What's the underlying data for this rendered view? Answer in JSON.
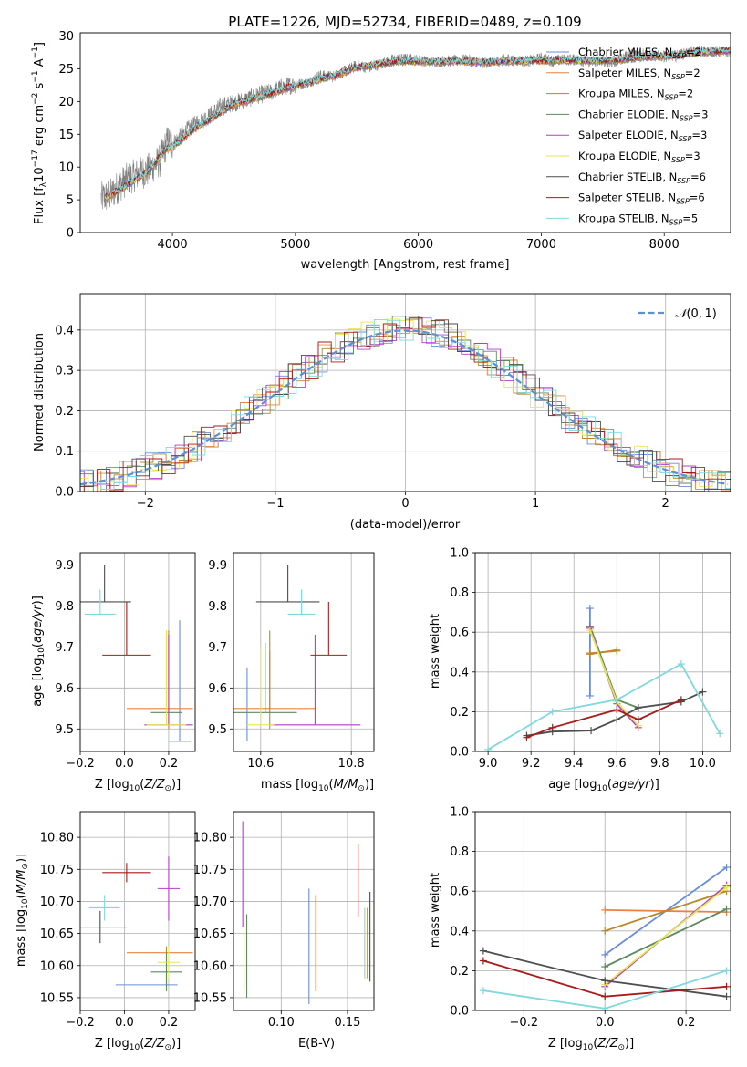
{
  "chart_data": [
    {
      "id": "spectrum",
      "type": "line",
      "title": "PLATE=1226, MJD=52734, FIBERID=0489, z=0.109",
      "xlabel": "wavelength [Angstrom, rest frame]",
      "ylabel": "Flux [f$_\\lambda$10$^{-17}$ erg cm$^{-2}$ s$^{-1}$ A$^{-1}$]",
      "xlim": [
        3250,
        8540
      ],
      "ylim": [
        0,
        30.5
      ],
      "xticks": [
        4000,
        5000,
        6000,
        7000,
        8000
      ],
      "yticks": [
        0,
        5,
        10,
        15,
        20,
        25,
        30
      ],
      "legend_position": "upper-right",
      "data_series": {
        "name": "",
        "color": "#808080",
        "x": [
          3420,
          3500,
          3560,
          3620,
          3700,
          3800,
          3900,
          3960,
          4000,
          4100,
          4200,
          4300,
          4400,
          4500,
          4600,
          4700,
          4800,
          4900,
          5000,
          5100,
          5200,
          5300,
          5400,
          5500,
          5600,
          5700,
          5800,
          5900,
          6000,
          6100,
          6200,
          6300,
          6400,
          6500,
          6600,
          6700,
          6800,
          6900,
          7000,
          7100,
          7200,
          7300,
          7400,
          7500,
          7600,
          7700,
          7800,
          7900,
          8000,
          8100,
          8200,
          8300,
          8400,
          8500
        ],
        "y": [
          5.2,
          5.8,
          7,
          8,
          8.8,
          9.5,
          11,
          14,
          13.5,
          15.3,
          16.8,
          17.8,
          19.3,
          19.8,
          20.3,
          21,
          21.4,
          22.3,
          22.6,
          22.8,
          24,
          23.8,
          24.6,
          25.5,
          25.2,
          25.8,
          26.4,
          26.5,
          26.3,
          26,
          26.2,
          26.2,
          26.4,
          25.9,
          26,
          26.4,
          26.3,
          26.2,
          26.6,
          26.2,
          26.4,
          26.4,
          26,
          26.2,
          26,
          27,
          27.5,
          27,
          26.9,
          27,
          27.5,
          27.8,
          27.6,
          27.6
        ]
      },
      "series": [
        {
          "name": "Chabrier MILES, N$_{SSP}$=2",
          "color": "#6a8dd8"
        },
        {
          "name": "Salpeter MILES, N$_{SSP}$=2",
          "color": "#e9843f"
        },
        {
          "name": "Kroupa MILES, N$_{SSP}$=2",
          "color": "#b8882a"
        },
        {
          "name": "Chabrier ELODIE, N$_{SSP}$=3",
          "color": "#5d8a61"
        },
        {
          "name": "Salpeter ELODIE, N$_{SSP}$=3",
          "color": "#b23ec8"
        },
        {
          "name": "Kroupa ELODIE, N$_{SSP}$=3",
          "color": "#e8e64e"
        },
        {
          "name": "Chabrier STELIB, N$_{SSP}$=6",
          "color": "#4d4d4d"
        },
        {
          "name": "Salpeter STELIB, N$_{SSP}$=6",
          "color": "#a71b1b"
        },
        {
          "name": "Kroupa STELIB, N$_{SSP}$=5",
          "color": "#7fd9dd"
        }
      ],
      "model_curve": {
        "x": [
          3450,
          3550,
          3650,
          3800,
          3950,
          4050,
          4200,
          4350,
          4500,
          4650,
          4800,
          4950,
          5100,
          5300,
          5500,
          5700,
          5900,
          6100,
          6300,
          6500,
          6700,
          6900,
          7100,
          7300,
          7500,
          7700,
          7900,
          8100,
          8300,
          8540
        ],
        "y": [
          5.3,
          6.3,
          7.5,
          9.3,
          12.8,
          13.8,
          16.2,
          17.8,
          19.6,
          20.4,
          21.2,
          22.2,
          22.9,
          23.9,
          25.2,
          25.8,
          26.2,
          26.1,
          26.1,
          26,
          26.1,
          26.2,
          26.3,
          26.3,
          26.2,
          26.5,
          26.9,
          27.1,
          27.5,
          27.8
        ]
      }
    },
    {
      "id": "residuals",
      "type": "line",
      "xlabel": "(data-model)/error",
      "ylabel": "Normed distribution",
      "xlim": [
        -2.5,
        2.5
      ],
      "ylim": [
        0,
        0.49
      ],
      "xticks": [
        -2,
        -1,
        0,
        1,
        2
      ],
      "yticks": [
        0.0,
        0.1,
        0.2,
        0.3,
        0.4
      ],
      "grid": true,
      "legend": "$\\mathcal{N}(0,1)$",
      "legend_position": "upper-right",
      "gaussian": {
        "mu": 0,
        "sigma": 1,
        "color": "#5b8fd6"
      },
      "hist_bin_width": 0.1,
      "hist_amplitude_noise": 0.035
    },
    {
      "id": "age_vs_Z",
      "type": "scatter",
      "xlabel": "Z [log$_{10}$($Z/Z_\\odot$)]",
      "ylabel": "age  [log$_{10}$($age/yr$)]",
      "xlim": [
        -0.2,
        0.32
      ],
      "ylim": [
        9.445,
        9.93
      ],
      "xticks": [
        -0.2,
        0.0,
        0.2
      ],
      "yticks": [
        9.5,
        9.6,
        9.7,
        9.8,
        9.9
      ],
      "grid": true,
      "points": [
        {
          "series": 0,
          "x": 0.25,
          "y": 9.47,
          "xerr": 0.05,
          "yerr": 0.295
        },
        {
          "series": 1,
          "x": 0.16,
          "y": 9.55,
          "xerr": 0.15,
          "yerr": 0.0
        },
        {
          "series": 2,
          "x": 0.2,
          "y": 9.5,
          "xerr": 0.0,
          "yerr": 0.24
        },
        {
          "series": 3,
          "x": 0.19,
          "y": 9.54,
          "xerr": 0.07,
          "yerr": 0.2
        },
        {
          "series": 4,
          "x": 0.2,
          "y": 9.51,
          "xerr": 0.11,
          "yerr": 0.22
        },
        {
          "series": 5,
          "x": 0.19,
          "y": 9.51,
          "xerr": 0.09,
          "yerr": 0.23
        },
        {
          "series": 6,
          "x": -0.09,
          "y": 9.81,
          "xerr": 0.12,
          "yerr": 0.09
        },
        {
          "series": 7,
          "x": 0.01,
          "y": 9.68,
          "xerr": 0.11,
          "yerr": 0.13
        },
        {
          "series": 8,
          "x": -0.11,
          "y": 9.78,
          "xerr": 0.07,
          "yerr": 0.06
        }
      ]
    },
    {
      "id": "age_vs_mass",
      "type": "scatter",
      "xlabel": "mass [log$_{10}$($M/M_\\odot$)]",
      "ylabel": "",
      "xlim": [
        10.54,
        10.85
      ],
      "ylim": [
        9.445,
        9.93
      ],
      "xticks": [
        10.6,
        10.8
      ],
      "yticks": [
        9.5,
        9.6,
        9.7,
        9.8,
        9.9
      ],
      "grid": true,
      "points": [
        {
          "series": 0,
          "x": 10.57,
          "y": 9.47,
          "xerr": 0.0,
          "yerr": 0.18
        },
        {
          "series": 1,
          "x": 10.62,
          "y": 9.55,
          "xerr": 0.1,
          "yerr": 0.14
        },
        {
          "series": 2,
          "x": 10.62,
          "y": 9.5,
          "xerr": 0.0,
          "yerr": 0.24
        },
        {
          "series": 3,
          "x": 10.61,
          "y": 9.54,
          "xerr": 0.07,
          "yerr": 0.17
        },
        {
          "series": 4,
          "x": 10.72,
          "y": 9.51,
          "xerr": 0.1,
          "yerr": 0.22
        },
        {
          "series": 5,
          "x": 10.6,
          "y": 9.51,
          "xerr": 0.03,
          "yerr": 0.19
        },
        {
          "series": 6,
          "x": 10.66,
          "y": 9.81,
          "xerr": 0.07,
          "yerr": 0.09
        },
        {
          "series": 7,
          "x": 10.75,
          "y": 9.68,
          "xerr": 0.04,
          "yerr": 0.13
        },
        {
          "series": 8,
          "x": 10.69,
          "y": 9.78,
          "xerr": 0.03,
          "yerr": 0.06
        }
      ]
    },
    {
      "id": "weight_vs_age",
      "type": "line",
      "xlabel": "age  [log$_{10}$($age/yr$)]",
      "ylabel": "mass weight",
      "xlim": [
        8.94,
        10.13
      ],
      "ylim": [
        0.0,
        1.0
      ],
      "xticks": [
        9.0,
        9.2,
        9.4,
        9.6,
        9.8,
        10.0
      ],
      "yticks": [
        0.0,
        0.2,
        0.4,
        0.6,
        0.8,
        1.0
      ],
      "grid": true,
      "lines": [
        {
          "series": 0,
          "x": [
            9.475,
            9.475
          ],
          "y": [
            0.28,
            0.72
          ]
        },
        {
          "series": 1,
          "x": [
            9.475,
            9.6
          ],
          "y": [
            0.495,
            0.505
          ]
        },
        {
          "series": 2,
          "x": [
            9.475,
            9.6
          ],
          "y": [
            0.49,
            0.51
          ]
        },
        {
          "series": 3,
          "x": [
            9.475,
            9.6,
            9.7
          ],
          "y": [
            0.63,
            0.26,
            0.22
          ]
        },
        {
          "series": 4,
          "x": [
            9.475,
            9.6,
            9.7
          ],
          "y": [
            0.62,
            0.24,
            0.12
          ]
        },
        {
          "series": 5,
          "x": [
            9.475,
            9.6,
            9.7
          ],
          "y": [
            0.61,
            0.25,
            0.13
          ]
        },
        {
          "series": 6,
          "x": [
            9.18,
            9.3,
            9.48,
            9.6,
            9.7,
            9.9,
            10.0
          ],
          "y": [
            0.08,
            0.1,
            0.105,
            0.16,
            0.22,
            0.25,
            0.3
          ]
        },
        {
          "series": 7,
          "x": [
            9.18,
            9.3,
            9.6,
            9.7,
            9.9
          ],
          "y": [
            0.07,
            0.12,
            0.21,
            0.16,
            0.26
          ]
        },
        {
          "series": 8,
          "x": [
            9.0,
            9.3,
            9.6,
            9.9,
            10.08
          ],
          "y": [
            0.01,
            0.2,
            0.26,
            0.44,
            0.09
          ]
        }
      ]
    },
    {
      "id": "mass_vs_Z",
      "type": "scatter",
      "xlabel": "Z [log$_{10}$($Z/Z_\\odot$)]",
      "ylabel": "mass [log$_{10}$($M/M_\\odot$)]",
      "xlim": [
        -0.2,
        0.32
      ],
      "ylim": [
        10.53,
        10.84
      ],
      "xticks": [
        -0.2,
        0.0,
        0.2
      ],
      "yticks": [
        10.55,
        10.6,
        10.65,
        10.7,
        10.75,
        10.8
      ],
      "grid": true,
      "points": [
        {
          "series": 0,
          "x": 0.1,
          "y": 10.57,
          "xerr": 0.14,
          "yerr": 0.0
        },
        {
          "series": 1,
          "x": 0.16,
          "y": 10.62,
          "xerr": 0.15,
          "yerr": 0.0
        },
        {
          "series": 2,
          "x": 0.19,
          "y": 10.6,
          "xerr": 0.0,
          "yerr": 0.06
        },
        {
          "series": 3,
          "x": 0.19,
          "y": 10.59,
          "xerr": 0.07,
          "yerr": 0.06
        },
        {
          "series": 4,
          "x": 0.2,
          "y": 10.72,
          "xerr": 0.05,
          "yerr": 0.1
        },
        {
          "series": 5,
          "x": 0.2,
          "y": 10.605,
          "xerr": 0.05,
          "yerr": 0.05
        },
        {
          "series": 6,
          "x": -0.11,
          "y": 10.66,
          "xerr": 0.12,
          "yerr": 0.05
        },
        {
          "series": 7,
          "x": 0.01,
          "y": 10.745,
          "xerr": 0.11,
          "yerr": 0.03
        },
        {
          "series": 8,
          "x": -0.09,
          "y": 10.69,
          "xerr": 0.07,
          "yerr": 0.04
        }
      ]
    },
    {
      "id": "mass_vs_ebv",
      "type": "scatter",
      "xlabel": "E(B-V)",
      "ylabel": "",
      "xlim": [
        0.064,
        0.17
      ],
      "ylim": [
        10.53,
        10.84
      ],
      "xticks": [
        0.1,
        0.15
      ],
      "yticks": [
        10.55,
        10.6,
        10.65,
        10.7,
        10.75,
        10.8
      ],
      "grid": true,
      "vertical_bars": [
        {
          "series": 0,
          "x": 0.121,
          "y0": 10.54,
          "y1": 10.72
        },
        {
          "series": 1,
          "x": 0.126,
          "y0": 10.56,
          "y1": 10.71
        },
        {
          "series": 2,
          "x": 0.165,
          "y0": 10.58,
          "y1": 10.69
        },
        {
          "series": 3,
          "x": 0.074,
          "y0": 10.55,
          "y1": 10.68
        },
        {
          "series": 4,
          "x": 0.071,
          "y0": 10.66,
          "y1": 10.825
        },
        {
          "series": 5,
          "x": 0.072,
          "y0": 10.56,
          "y1": 10.68
        },
        {
          "series": 6,
          "x": 0.167,
          "y0": 10.575,
          "y1": 10.715
        },
        {
          "series": 7,
          "x": 0.158,
          "y0": 10.675,
          "y1": 10.79
        },
        {
          "series": 8,
          "x": 0.163,
          "y0": 10.58,
          "y1": 10.69
        }
      ]
    },
    {
      "id": "weight_vs_Z",
      "type": "line",
      "xlabel": "Z [log$_{10}$($Z/Z_\\odot$)]",
      "ylabel": "mass weight",
      "xlim": [
        -0.32,
        0.31
      ],
      "ylim": [
        0.0,
        1.0
      ],
      "xticks": [
        -0.2,
        0.0,
        0.2
      ],
      "yticks": [
        0.0,
        0.2,
        0.4,
        0.6,
        0.8,
        1.0
      ],
      "grid": true,
      "lines": [
        {
          "series": 0,
          "x": [
            0.0,
            0.3
          ],
          "y": [
            0.28,
            0.72
          ]
        },
        {
          "series": 1,
          "x": [
            0.0,
            0.3
          ],
          "y": [
            0.505,
            0.495
          ]
        },
        {
          "series": 2,
          "x": [
            0.0,
            0.3
          ],
          "y": [
            0.4,
            0.6
          ]
        },
        {
          "series": 3,
          "x": [
            0.0,
            0.3
          ],
          "y": [
            0.22,
            0.51
          ]
        },
        {
          "series": 4,
          "x": [
            0.0,
            0.3
          ],
          "y": [
            0.12,
            0.63
          ]
        },
        {
          "series": 5,
          "x": [
            0.0,
            0.3
          ],
          "y": [
            0.13,
            0.62
          ]
        },
        {
          "series": 6,
          "x": [
            -0.3,
            0.0,
            0.3
          ],
          "y": [
            0.3,
            0.15,
            0.07
          ]
        },
        {
          "series": 7,
          "x": [
            -0.3,
            0.0,
            0.3
          ],
          "y": [
            0.25,
            0.07,
            0.12
          ]
        },
        {
          "series": 8,
          "x": [
            -0.3,
            0.0,
            0.3
          ],
          "y": [
            0.1,
            0.01,
            0.2
          ]
        }
      ]
    }
  ]
}
